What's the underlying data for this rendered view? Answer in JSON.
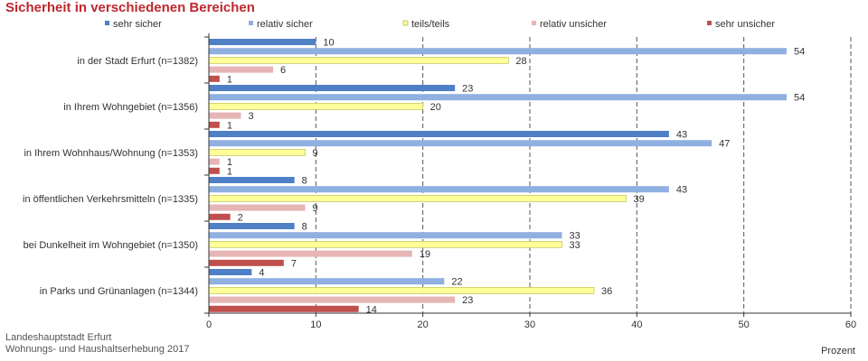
{
  "title": "Sicherheit in verschiedenen Bereichen",
  "source": {
    "line1": "Landeshauptstadt Erfurt",
    "line2": "Wohnungs- und Haushaltserhebung 2017"
  },
  "colors": {
    "sehr_sicher": "#4f7fc5",
    "relativ_sicher": "#8fb0e0",
    "teils_teils": "#ffff99",
    "relativ_unsicher": "#e6b5b5",
    "sehr_unsicher": "#c0504d",
    "title": "#c0272d"
  },
  "chart_data": {
    "type": "bar",
    "orientation": "horizontal",
    "title": "Sicherheit in verschiedenen Bereichen",
    "xlabel": "Prozent",
    "ylabel": "",
    "xlim": [
      0,
      60
    ],
    "xticks": [
      0,
      10,
      20,
      30,
      40,
      50,
      60
    ],
    "grid": "vertical-dashed",
    "legend_position": "top",
    "categories": [
      "in der Stadt Erfurt (n=1382)",
      "in Ihrem Wohngebiet (n=1356)",
      "in Ihrem Wohnhaus/Wohnung (n=1353)",
      "in öffentlichen Verkehrsmitteln (n=1335)",
      "bei Dunkelheit im Wohngebiet (n=1350)",
      "in Parks und Grünanlagen (n=1344)"
    ],
    "series": [
      {
        "name": "sehr sicher",
        "color": "#4f7fc5",
        "values": [
          10,
          23,
          43,
          8,
          8,
          4
        ]
      },
      {
        "name": "relativ sicher",
        "color": "#8fb0e0",
        "values": [
          54,
          54,
          47,
          43,
          33,
          22
        ]
      },
      {
        "name": "teils/teils",
        "color": "#ffff99",
        "values": [
          28,
          20,
          9,
          39,
          33,
          36
        ]
      },
      {
        "name": "relativ unsicher",
        "color": "#e6b5b5",
        "values": [
          6,
          3,
          1,
          9,
          19,
          23
        ]
      },
      {
        "name": "sehr unsicher",
        "color": "#c0504d",
        "values": [
          1,
          1,
          1,
          2,
          7,
          14
        ]
      }
    ]
  }
}
